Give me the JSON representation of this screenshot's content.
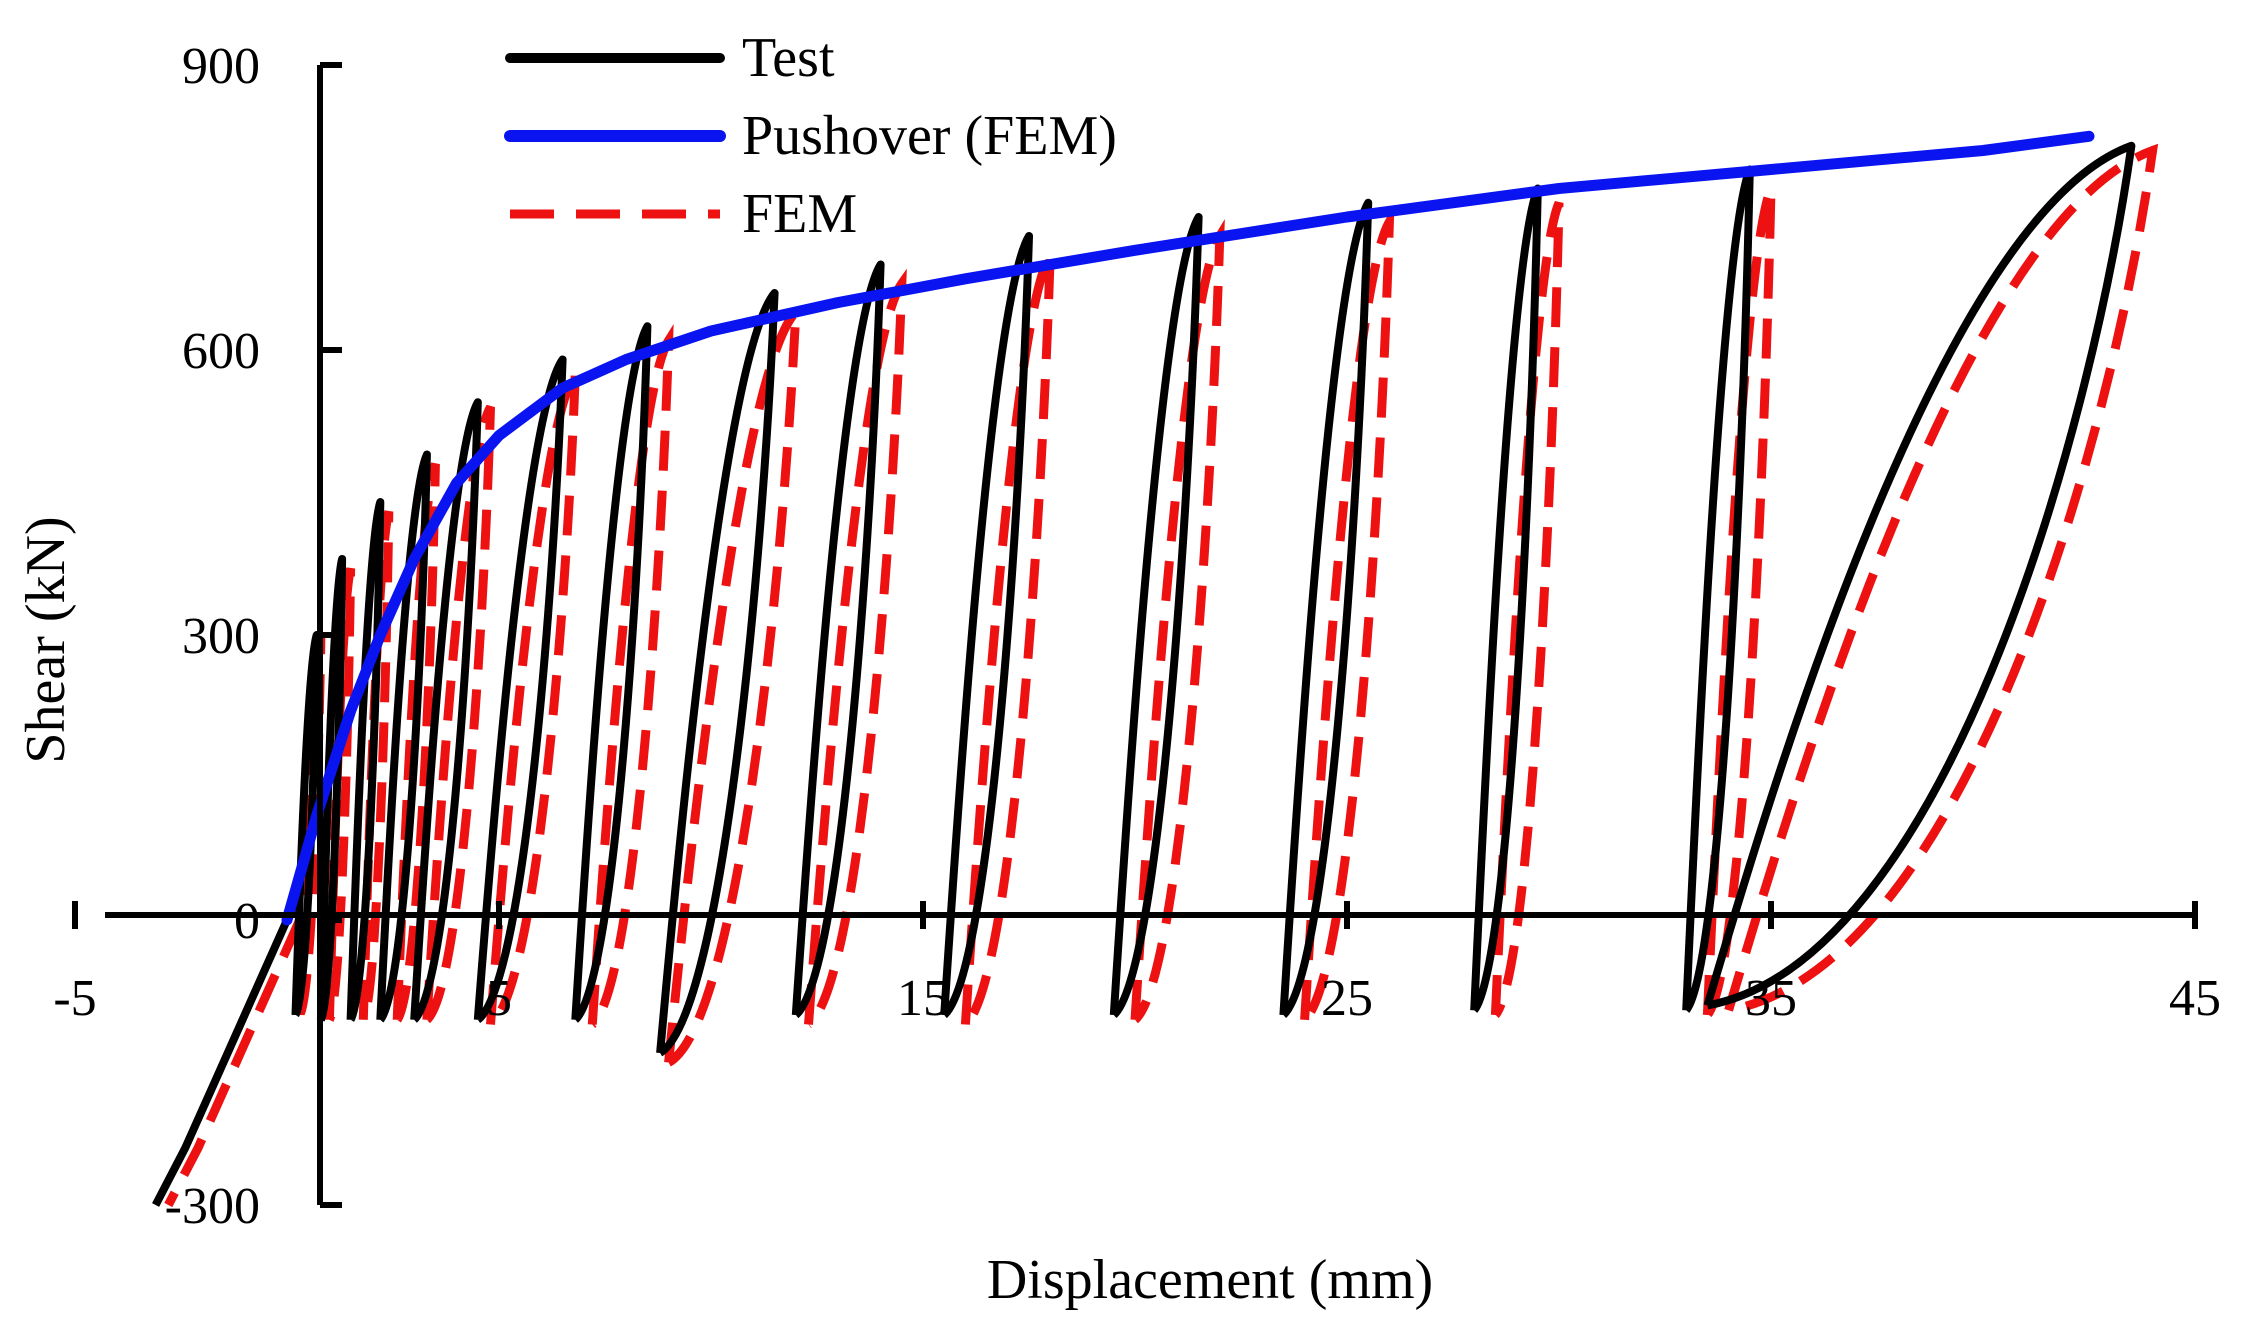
{
  "chart_data": {
    "type": "line",
    "title": "",
    "xlabel": "Displacement (mm)",
    "ylabel": "Shear (kN)",
    "xlim": [
      -5,
      45
    ],
    "ylim": [
      -300,
      900
    ],
    "xticks": [
      {
        "value": -5,
        "label": "-5"
      },
      {
        "value": 5,
        "label": "5"
      },
      {
        "value": 15,
        "label": "15"
      },
      {
        "value": 25,
        "label": "25"
      },
      {
        "value": 35,
        "label": "35"
      },
      {
        "value": 45,
        "label": "45"
      }
    ],
    "yticks": [
      {
        "value": -300,
        "label": "-300"
      },
      {
        "value": 0,
        "label": "0"
      },
      {
        "value": 300,
        "label": "300"
      },
      {
        "value": 600,
        "label": "600"
      },
      {
        "value": 900,
        "label": "900"
      }
    ],
    "grid": false,
    "legend_position": "top-left",
    "legend": [
      {
        "name": "Test",
        "color": "#000000",
        "style": "solid"
      },
      {
        "name": "Pushover (FEM)",
        "color": "#0a14f0",
        "style": "solid"
      },
      {
        "name": "FEM",
        "color": "#ee1111",
        "style": "dashed"
      }
    ],
    "pushover": {
      "x": [
        0,
        0.7,
        1.5,
        2.2,
        3.0,
        4.0,
        5.0,
        6.5,
        8.0,
        10.0,
        13.0,
        16.0,
        20.0,
        25.0,
        30.0,
        35.0,
        40.0,
        42.5
      ],
      "y": [
        0,
        110,
        220,
        300,
        380,
        460,
        510,
        560,
        590,
        620,
        650,
        675,
        705,
        740,
        770,
        790,
        810,
        825
      ]
    },
    "loops": [
      {
        "peak": [
          0.7,
          300
        ],
        "peak_b": [
          0.8,
          300
        ],
        "res": [
          0.2,
          -100
        ],
        "res_b": [
          0.3,
          -100
        ]
      },
      {
        "peak": [
          1.3,
          380
        ],
        "peak_b": [
          1.5,
          370
        ],
        "res": [
          0.8,
          -105
        ],
        "res_b": [
          1.0,
          -105
        ]
      },
      {
        "peak": [
          2.2,
          440
        ],
        "peak_b": [
          2.4,
          430
        ],
        "res": [
          1.5,
          -105
        ],
        "res_b": [
          1.8,
          -105
        ]
      },
      {
        "peak": [
          3.3,
          490
        ],
        "peak_b": [
          3.5,
          480
        ],
        "res": [
          2.2,
          -105
        ],
        "res_b": [
          2.6,
          -105
        ]
      },
      {
        "peak": [
          4.5,
          545
        ],
        "peak_b": [
          4.8,
          540
        ],
        "res": [
          3.0,
          -105
        ],
        "res_b": [
          3.3,
          -105
        ]
      },
      {
        "peak": [
          6.5,
          590
        ],
        "peak_b": [
          6.8,
          575
        ],
        "res": [
          4.5,
          -105
        ],
        "res_b": [
          4.8,
          -110
        ]
      },
      {
        "peak": [
          8.5,
          625
        ],
        "peak_b": [
          9.0,
          610
        ],
        "res": [
          6.8,
          -105
        ],
        "res_b": [
          7.2,
          -110
        ]
      },
      {
        "peak": [
          11.5,
          660
        ],
        "peak_b": [
          12.0,
          640
        ],
        "res": [
          8.8,
          -140
        ],
        "res_b": [
          9.0,
          -150
        ]
      },
      {
        "peak": [
          14.0,
          690
        ],
        "peak_b": [
          14.5,
          670
        ],
        "res": [
          12.0,
          -100
        ],
        "res_b": [
          12.3,
          -110
        ]
      },
      {
        "peak": [
          17.5,
          720
        ],
        "peak_b": [
          18.0,
          700
        ],
        "res": [
          15.5,
          -100
        ],
        "res_b": [
          16.0,
          -110
        ]
      },
      {
        "peak": [
          21.5,
          740
        ],
        "peak_b": [
          22.0,
          720
        ],
        "res": [
          19.5,
          -100
        ],
        "res_b": [
          20.0,
          -105
        ]
      },
      {
        "peak": [
          25.5,
          755
        ],
        "peak_b": [
          26.0,
          735
        ],
        "res": [
          23.5,
          -100
        ],
        "res_b": [
          24.0,
          -105
        ]
      },
      {
        "peak": [
          29.5,
          770
        ],
        "peak_b": [
          30.0,
          755
        ],
        "res": [
          28.0,
          -95
        ],
        "res_b": [
          28.5,
          -100
        ]
      },
      {
        "peak": [
          34.5,
          790
        ],
        "peak_b": [
          35.0,
          770
        ],
        "res": [
          33.0,
          -95
        ],
        "res_b": [
          33.5,
          -100
        ]
      },
      {
        "peak": [
          43.5,
          815
        ],
        "peak_b": [
          44.0,
          810
        ],
        "res": [
          33.5,
          -90
        ],
        "res_b": [
          34.0,
          -95
        ]
      }
    ],
    "negative_branch": {
      "x": [
        0,
        -0.8,
        -1.6,
        -2.4,
        -3.1
      ],
      "y": [
        0,
        -80,
        -160,
        -240,
        -300
      ]
    }
  }
}
